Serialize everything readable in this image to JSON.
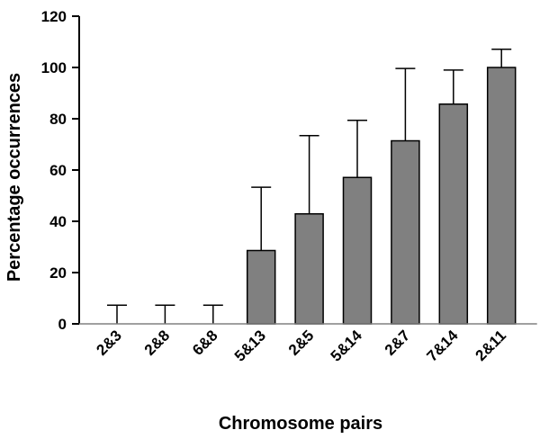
{
  "chart_data": {
    "type": "bar",
    "xlabel": "Chromosome pairs",
    "ylabel": "Percentage occurrences",
    "ylim": [
      0,
      120
    ],
    "yticks": [
      0,
      20,
      40,
      60,
      80,
      100,
      120
    ],
    "grid": false,
    "categories": [
      "2&3",
      "2&8",
      "6&8",
      "5&13",
      "2&5",
      "5&14",
      "2&7",
      "7&14",
      "2&11"
    ],
    "values": [
      0,
      0,
      0,
      28.6,
      42.9,
      57.1,
      71.4,
      85.7,
      100
    ],
    "error_upper": [
      7.3,
      7.3,
      7.3,
      24.7,
      30.5,
      22.3,
      28.2,
      13.3,
      7.1
    ],
    "bar_color": "#808080",
    "axis_color": "#000000",
    "baseline_color": "#808080"
  }
}
